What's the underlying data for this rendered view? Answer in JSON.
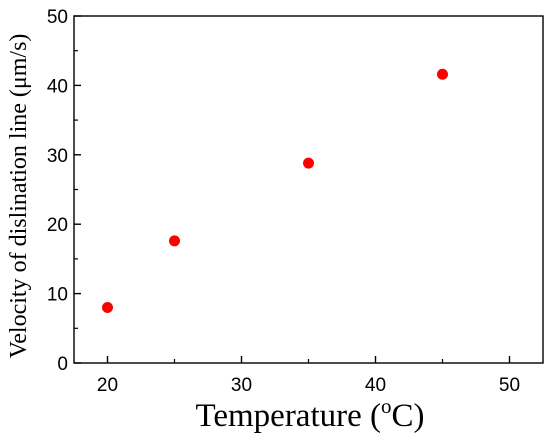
{
  "chart_data": {
    "type": "scatter",
    "xlabel": "Temperature (",
    "xlabel_sup": "o",
    "xlabel_suffix": "C)",
    "ylabel": "Velocity of dislination line (μm/s)",
    "xlim": [
      17.5,
      52.5
    ],
    "ylim": [
      0,
      50
    ],
    "xticks": [
      20,
      30,
      40,
      50
    ],
    "yticks": [
      0,
      10,
      20,
      30,
      40,
      50
    ],
    "grid": false,
    "marker_color": "#ff0000",
    "series": [
      {
        "x": [
          20,
          25,
          35,
          45
        ],
        "y": [
          8.0,
          17.6,
          28.8,
          41.6
        ]
      }
    ]
  }
}
